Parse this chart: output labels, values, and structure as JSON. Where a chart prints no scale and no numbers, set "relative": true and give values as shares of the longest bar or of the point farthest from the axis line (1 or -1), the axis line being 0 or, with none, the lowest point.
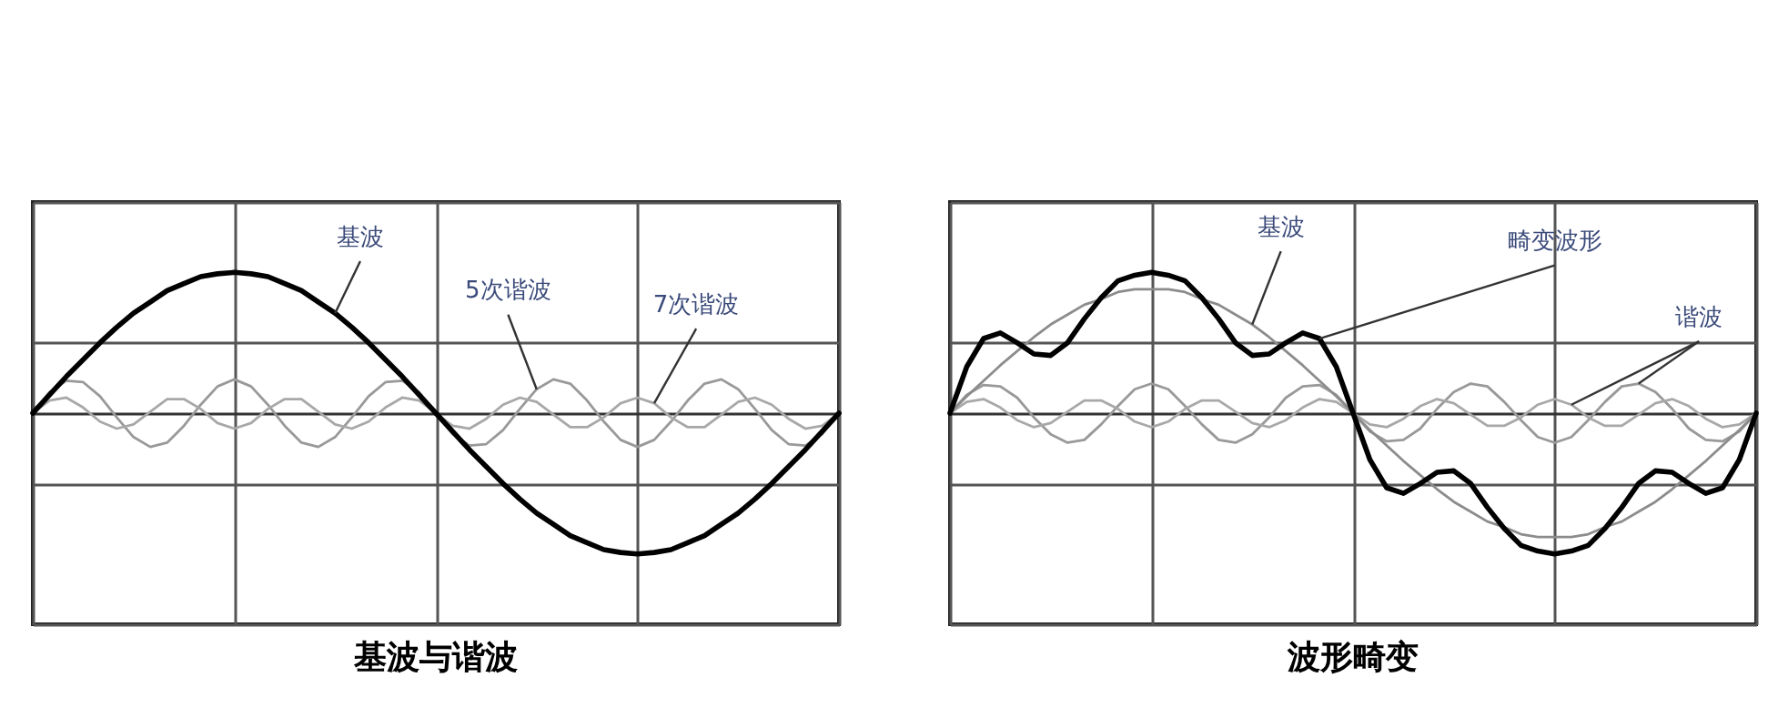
{
  "chart_data": [
    {
      "type": "line",
      "title": "基波与谐波",
      "relative": true,
      "grid": true,
      "categories": [
        null,
        null,
        null,
        null,
        null,
        null,
        null,
        null,
        null,
        null,
        null,
        null,
        null,
        null,
        null,
        null,
        null,
        null,
        null,
        null,
        null,
        null,
        null,
        null,
        null,
        null,
        null,
        null,
        null,
        null,
        null,
        null,
        null,
        null,
        null,
        null,
        null,
        null,
        null,
        null,
        null,
        null,
        null,
        null,
        null,
        null,
        null,
        null,
        null
      ],
      "series": [
        {
          "name": "5次谐波",
          "color": "#999999",
          "values": [
            0,
            0.15,
            0.23,
            0.22,
            0.12,
            -0.03,
            -0.17,
            -0.24,
            -0.21,
            -0.09,
            0.06,
            0.19,
            0.24,
            0.19,
            0.06,
            -0.09,
            -0.21,
            -0.24,
            -0.17,
            -0.03,
            0.12,
            0.22,
            0.23,
            0.15,
            0,
            -0.15,
            -0.23,
            -0.22,
            -0.12,
            0.03,
            0.17,
            0.24,
            0.21,
            0.09,
            -0.06,
            -0.19,
            -0.24,
            -0.19,
            -0.06,
            0.09,
            0.21,
            0.24,
            0.17,
            0.03,
            -0.12,
            -0.22,
            -0.23,
            -0.15,
            0
          ]
        },
        {
          "name": "7次谐波",
          "color": "#a8a8a8",
          "values": [
            0,
            0.09,
            0.11,
            0.04,
            -0.06,
            -0.11,
            -0.08,
            0.01,
            0.1,
            0.1,
            0.03,
            -0.07,
            -0.11,
            -0.07,
            0.03,
            0.1,
            0.1,
            0.01,
            -0.08,
            -0.11,
            -0.06,
            0.04,
            0.11,
            0.09,
            0,
            -0.09,
            -0.11,
            -0.04,
            0.06,
            0.11,
            0.08,
            -0.01,
            -0.1,
            -0.1,
            -0.03,
            0.07,
            0.11,
            0.07,
            -0.03,
            -0.1,
            -0.1,
            -0.01,
            0.08,
            0.11,
            0.06,
            -0.04,
            -0.11,
            -0.09,
            0
          ]
        },
        {
          "name": "基波",
          "color": "#000000",
          "values": [
            0,
            0.13,
            0.26,
            0.38,
            0.5,
            0.61,
            0.71,
            0.79,
            0.87,
            0.92,
            0.97,
            0.99,
            1,
            0.99,
            0.97,
            0.92,
            0.87,
            0.79,
            0.71,
            0.61,
            0.5,
            0.38,
            0.26,
            0.13,
            0,
            -0.13,
            -0.26,
            -0.38,
            -0.5,
            -0.61,
            -0.71,
            -0.79,
            -0.87,
            -0.92,
            -0.97,
            -0.99,
            -1,
            -0.99,
            -0.97,
            -0.92,
            -0.87,
            -0.79,
            -0.71,
            -0.61,
            -0.5,
            -0.38,
            -0.26,
            -0.13,
            0
          ]
        }
      ]
    },
    {
      "type": "line",
      "title": "波形畸变",
      "relative": true,
      "grid": true,
      "categories": [
        null,
        null,
        null,
        null,
        null,
        null,
        null,
        null,
        null,
        null,
        null,
        null,
        null,
        null,
        null,
        null,
        null,
        null,
        null,
        null,
        null,
        null,
        null,
        null,
        null,
        null,
        null,
        null,
        null,
        null,
        null,
        null,
        null,
        null,
        null,
        null,
        null,
        null,
        null,
        null,
        null,
        null,
        null,
        null,
        null,
        null,
        null,
        null,
        null
      ],
      "series": [
        {
          "name": "谐波",
          "color": "#999999",
          "values": [
            0,
            0.13,
            0.2,
            0.19,
            0.11,
            -0.03,
            -0.15,
            -0.21,
            -0.19,
            -0.08,
            0.05,
            0.17,
            0.21,
            0.17,
            0.05,
            -0.08,
            -0.19,
            -0.21,
            -0.15,
            -0.03,
            0.11,
            0.19,
            0.2,
            0.13,
            0,
            -0.13,
            -0.2,
            -0.19,
            -0.11,
            0.03,
            0.15,
            0.21,
            0.19,
            0.08,
            -0.05,
            -0.17,
            -0.21,
            -0.17,
            -0.05,
            0.08,
            0.19,
            0.21,
            0.15,
            0.03,
            -0.11,
            -0.19,
            -0.2,
            -0.13,
            0
          ]
        },
        {
          "color": "#a8a8a8",
          "values": [
            0,
            0.08,
            0.1,
            0.04,
            -0.05,
            -0.1,
            -0.07,
            0.01,
            0.09,
            0.09,
            0.03,
            -0.06,
            -0.1,
            -0.06,
            0.03,
            0.09,
            0.09,
            0.01,
            -0.07,
            -0.1,
            -0.05,
            0.04,
            0.1,
            0.08,
            0,
            -0.08,
            -0.1,
            -0.04,
            0.05,
            0.1,
            0.07,
            -0.01,
            -0.09,
            -0.09,
            -0.03,
            0.06,
            0.1,
            0.06,
            -0.03,
            -0.09,
            -0.09,
            -0.01,
            0.07,
            0.1,
            0.05,
            -0.04,
            -0.1,
            -0.08,
            0
          ]
        },
        {
          "name": "基波",
          "color": "#8c8c8c",
          "values": [
            0,
            0.12,
            0.23,
            0.34,
            0.44,
            0.54,
            0.63,
            0.7,
            0.77,
            0.81,
            0.86,
            0.88,
            0.88,
            0.88,
            0.86,
            0.81,
            0.77,
            0.7,
            0.63,
            0.54,
            0.44,
            0.34,
            0.23,
            0.12,
            0,
            -0.12,
            -0.23,
            -0.34,
            -0.44,
            -0.54,
            -0.63,
            -0.7,
            -0.77,
            -0.81,
            -0.86,
            -0.88,
            -0.88,
            -0.88,
            -0.86,
            -0.81,
            -0.77,
            -0.7,
            -0.63,
            -0.54,
            -0.44,
            -0.34,
            -0.23,
            -0.12,
            0
          ]
        },
        {
          "name": "畸变波形",
          "color": "#000000",
          "values": [
            0,
            0.33,
            0.53,
            0.57,
            0.5,
            0.42,
            0.41,
            0.5,
            0.67,
            0.82,
            0.94,
            0.98,
            1,
            0.98,
            0.94,
            0.82,
            0.67,
            0.5,
            0.41,
            0.42,
            0.5,
            0.57,
            0.53,
            0.33,
            0,
            -0.33,
            -0.53,
            -0.57,
            -0.5,
            -0.42,
            -0.41,
            -0.5,
            -0.67,
            -0.82,
            -0.94,
            -0.98,
            -1,
            -0.98,
            -0.94,
            -0.82,
            -0.67,
            -0.5,
            -0.41,
            -0.42,
            -0.5,
            -0.57,
            -0.53,
            -0.33,
            0
          ]
        }
      ]
    }
  ]
}
